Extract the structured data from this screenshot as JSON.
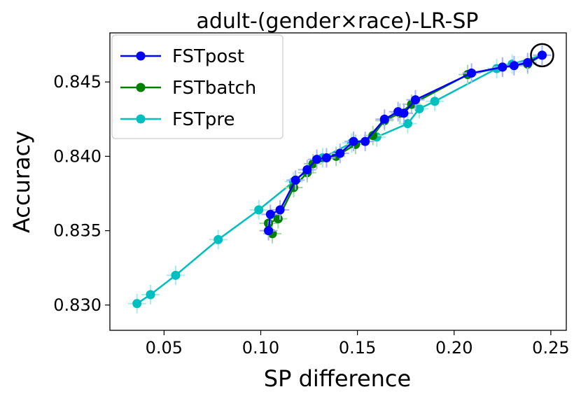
{
  "chart_data": {
    "type": "line",
    "title": "adult-(gender×race)-LR-SP",
    "xlabel": "SP difference",
    "ylabel": "Accuracy",
    "xlim": [
      0.022,
      0.258
    ],
    "ylim": [
      0.8283,
      0.8483
    ],
    "xticks": [
      0.05,
      0.1,
      0.15,
      0.2,
      0.25
    ],
    "xtick_labels": [
      "0.05",
      "0.10",
      "0.15",
      "0.20",
      "0.25"
    ],
    "yticks": [
      0.83,
      0.835,
      0.84,
      0.845
    ],
    "ytick_labels": [
      "0.830",
      "0.835",
      "0.840",
      "0.845"
    ],
    "legend_position": "top-left",
    "highlight_point": {
      "x": 0.2455,
      "y": 0.8468
    },
    "series": [
      {
        "name": "FSTpost",
        "color": "#0000ff",
        "x": [
          0.104,
          0.105,
          0.11,
          0.118,
          0.124,
          0.129,
          0.134,
          0.141,
          0.148,
          0.154,
          0.164,
          0.171,
          0.174,
          0.18,
          0.209,
          0.225,
          0.231,
          0.238,
          0.2455
        ],
        "y": [
          0.835,
          0.8361,
          0.8364,
          0.8384,
          0.8391,
          0.8398,
          0.8399,
          0.8402,
          0.841,
          0.841,
          0.8425,
          0.843,
          0.8429,
          0.8438,
          0.8456,
          0.846,
          0.8461,
          0.8463,
          0.8468
        ]
      },
      {
        "name": "FSTbatch",
        "color": "#008000",
        "x": [
          0.106,
          0.104,
          0.109,
          0.117,
          0.124,
          0.127,
          0.139,
          0.149,
          0.158,
          0.164,
          0.172,
          0.178,
          0.207,
          0.225,
          0.238,
          0.2455
        ],
        "y": [
          0.8348,
          0.8355,
          0.8358,
          0.8379,
          0.8389,
          0.8395,
          0.84,
          0.8408,
          0.8414,
          0.8424,
          0.8429,
          0.8435,
          0.8455,
          0.846,
          0.8462,
          0.8468
        ]
      },
      {
        "name": "FSTpre",
        "color": "#00bfbf",
        "x": [
          0.036,
          0.043,
          0.056,
          0.078,
          0.099,
          0.117,
          0.132,
          0.147,
          0.16,
          0.176,
          0.182,
          0.19,
          0.222,
          0.23,
          0.2455
        ],
        "y": [
          0.8301,
          0.8307,
          0.832,
          0.8344,
          0.8364,
          0.8383,
          0.8399,
          0.8409,
          0.8413,
          0.8422,
          0.8432,
          0.8437,
          0.8459,
          0.8462,
          0.8468
        ]
      }
    ]
  }
}
